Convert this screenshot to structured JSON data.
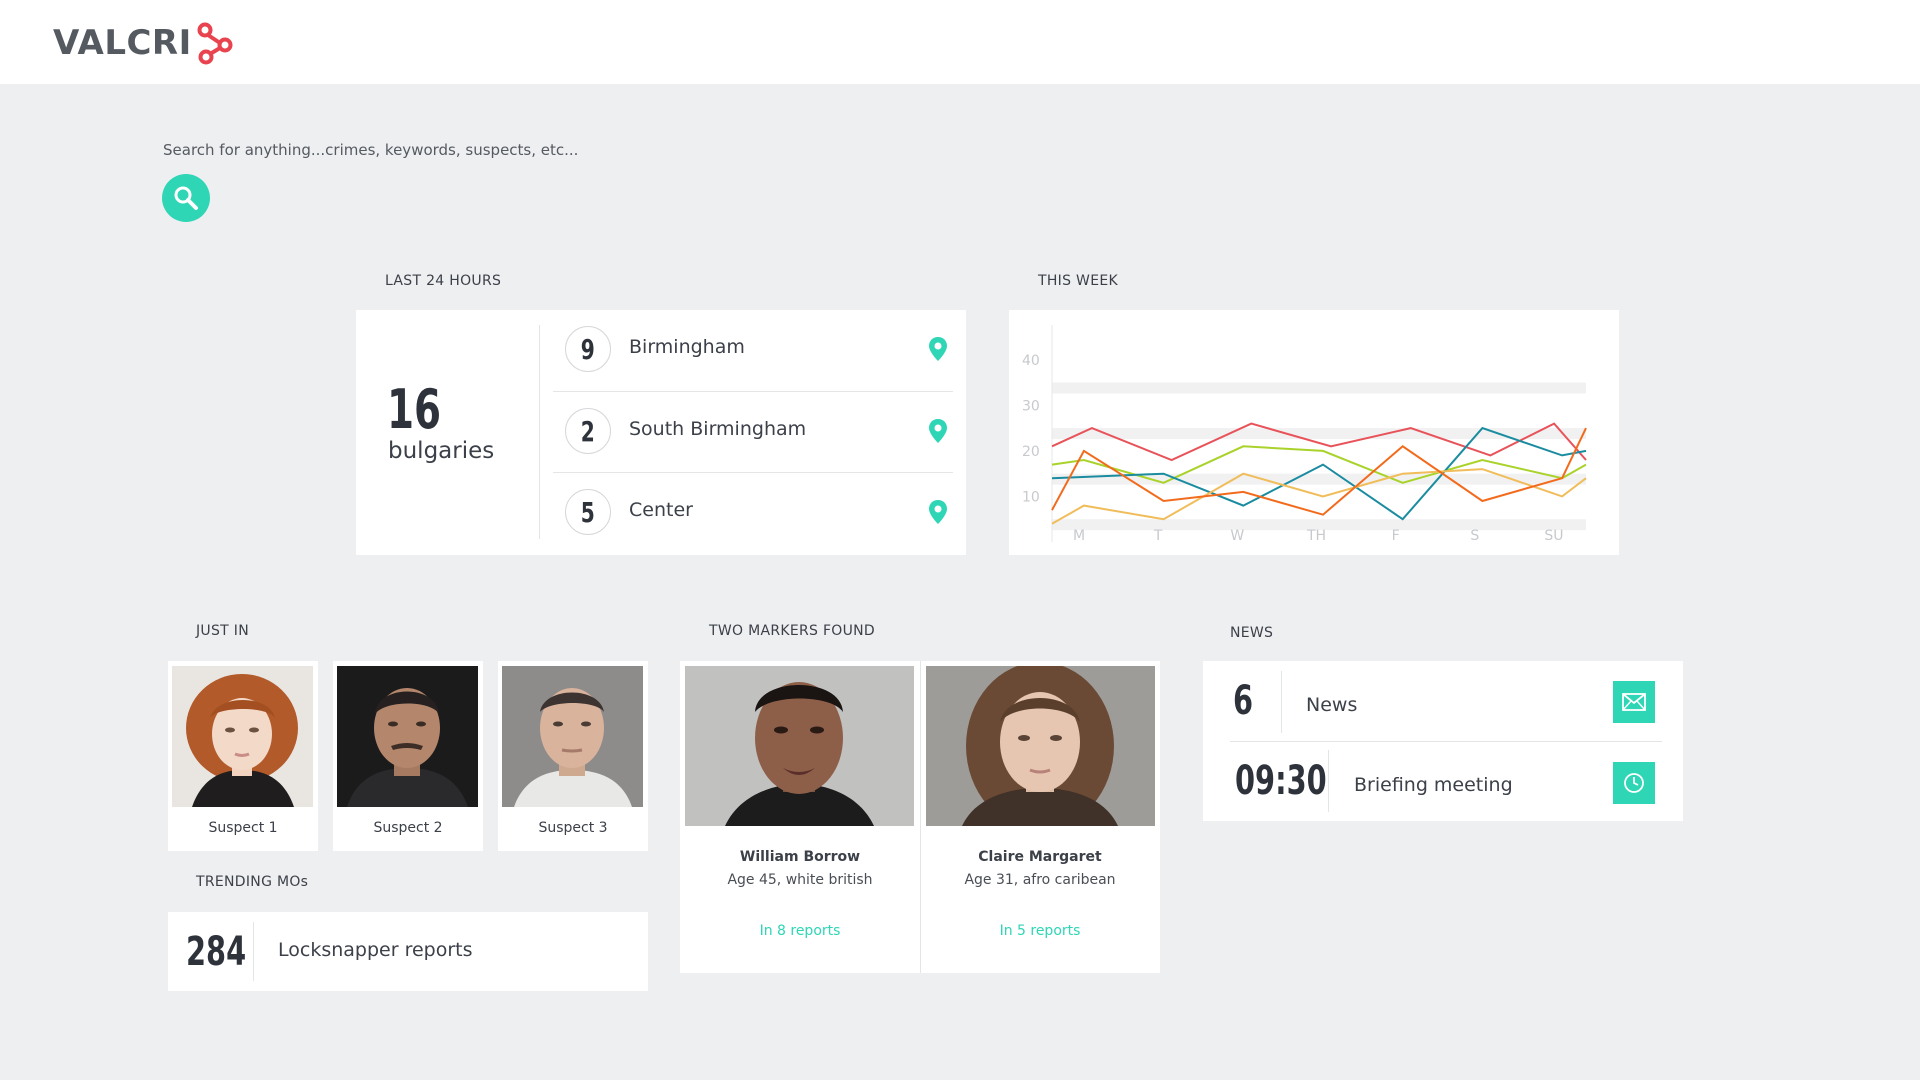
{
  "app": {
    "logo_text": "VALCRI",
    "logo_icon": "network-nodes-icon",
    "accent": "#2ed6b6"
  },
  "search": {
    "placeholder": "Search for anything...crimes, keywords, suspects, etc...",
    "value": "",
    "button_icon": "search-icon"
  },
  "last24": {
    "label": "LAST 24 HOURS",
    "total": "16",
    "total_caption": "bulgaries",
    "locations": [
      {
        "count": "9",
        "name": "Birmingham",
        "icon": "map-pin-icon"
      },
      {
        "count": "2",
        "name": "South Birmingham",
        "icon": "map-pin-icon"
      },
      {
        "count": "5",
        "name": "Center",
        "icon": "map-pin-icon"
      }
    ]
  },
  "chart_data": {
    "type": "line",
    "label": "THIS WEEK",
    "categories": [
      "M",
      "T",
      "W",
      "TH",
      "F",
      "S",
      "SU"
    ],
    "y_ticks": [
      "40",
      "30",
      "20",
      "10"
    ],
    "ylim": [
      0,
      45
    ],
    "grid": "alternating horizontal bands",
    "series": [
      {
        "color": "#e8535a",
        "x": [
          0,
          0.5,
          1.5,
          2.5,
          3.5,
          4.5,
          5.5,
          6.3,
          6.7
        ],
        "values": [
          21,
          25,
          18,
          26,
          21,
          25,
          19,
          26,
          18
        ]
      },
      {
        "color": "#a9d22a",
        "x": [
          0,
          0.4,
          1.4,
          2.4,
          3.4,
          4.4,
          5.4,
          6.4,
          6.7
        ],
        "values": [
          17,
          18,
          13,
          21,
          20,
          13,
          18,
          14,
          17
        ]
      },
      {
        "color": "#1b8ca0",
        "x": [
          0,
          1.4,
          2.4,
          3.4,
          4.4,
          5.4,
          6.4,
          6.7
        ],
        "values": [
          14,
          15,
          8,
          17,
          5,
          25,
          19,
          20
        ]
      },
      {
        "color": "#f0bd5a",
        "x": [
          0,
          0.4,
          1.4,
          2.4,
          3.4,
          4.4,
          5.4,
          6.4,
          6.7
        ],
        "values": [
          4,
          8,
          5,
          15,
          10,
          15,
          16,
          10,
          14
        ]
      },
      {
        "color": "#f26b1d",
        "x": [
          0,
          0.4,
          1.4,
          2.4,
          3.4,
          4.4,
          5.4,
          6.4,
          6.7
        ],
        "values": [
          7,
          20,
          9,
          11,
          6,
          21,
          9,
          14,
          25
        ]
      }
    ]
  },
  "just_in": {
    "label": "JUST IN",
    "suspects": [
      {
        "label": "Suspect 1"
      },
      {
        "label": "Suspect 2"
      },
      {
        "label": "Suspect 3"
      }
    ]
  },
  "markers": {
    "label": "TWO MARKERS FOUND",
    "people": [
      {
        "name": "William Borrow",
        "meta": "Age 45, white british",
        "link": "In 8 reports"
      },
      {
        "name": "Claire Margaret",
        "meta": "Age 31, afro caribean",
        "link": "In 5 reports"
      }
    ]
  },
  "news": {
    "label": "NEWS",
    "rows": [
      {
        "value": "6",
        "text": "News",
        "icon": "mail-icon"
      },
      {
        "value": "09:30",
        "text": "Briefing meeting",
        "icon": "clock-icon"
      }
    ]
  },
  "trending": {
    "label": "TRENDING MOs",
    "value": "284",
    "text": "Locksnapper reports"
  }
}
